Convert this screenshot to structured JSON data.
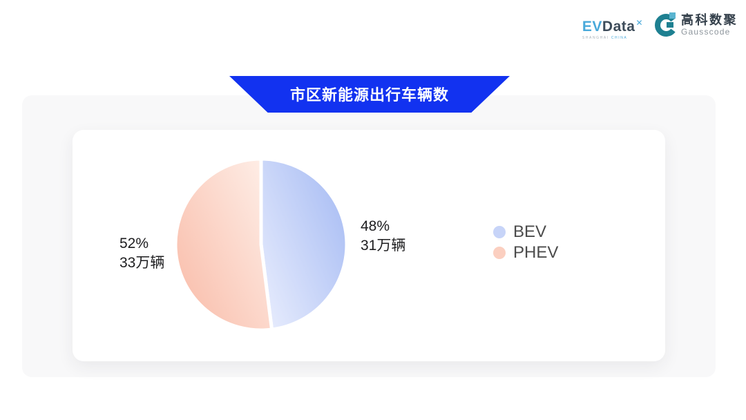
{
  "header": {
    "evdata_logo": {
      "ev": "EV",
      "data": "Data",
      "x_mark": "✕",
      "tagline_left": "SHANGHAI",
      "tagline_right": "CHINA"
    },
    "gausscode_logo": {
      "cn_name": "高科数聚",
      "en_name": "Gausscode",
      "mark_color": "#1e8091",
      "mark_accent": "#5ab4d0"
    }
  },
  "banner": {
    "title": "市区新能源出行车辆数",
    "color": "#1232f0"
  },
  "chart_data": {
    "type": "pie",
    "title": "市区新能源出行车辆数",
    "start_angle_deg": 0,
    "clockwise": true,
    "slice_gap_stroke": "#ffffff",
    "series": [
      {
        "name": "BEV",
        "percent": 48,
        "percent_label": "48%",
        "value_label": "31万辆",
        "gradient": [
          "#a6bbf3",
          "#e7ecfd"
        ],
        "legend_color": "#c7d4f8"
      },
      {
        "name": "PHEV",
        "percent": 52,
        "percent_label": "52%",
        "value_label": "33万辆",
        "gradient": [
          "#feeee7",
          "#f9bca9"
        ],
        "legend_color": "#fbcfc0"
      }
    ],
    "legend": {
      "position": "right",
      "entries": [
        "BEV",
        "PHEV"
      ]
    }
  }
}
